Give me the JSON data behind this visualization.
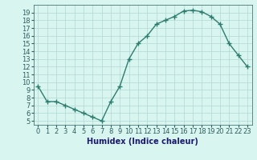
{
  "x": [
    0,
    1,
    2,
    3,
    4,
    5,
    6,
    7,
    8,
    9,
    10,
    11,
    12,
    13,
    14,
    15,
    16,
    17,
    18,
    19,
    20,
    21,
    22,
    23
  ],
  "y": [
    9.5,
    7.5,
    7.5,
    7.0,
    6.5,
    6.0,
    5.5,
    5.0,
    7.5,
    9.5,
    13.0,
    15.0,
    16.0,
    17.5,
    18.0,
    18.5,
    19.2,
    19.3,
    19.1,
    18.5,
    17.5,
    15.0,
    13.5,
    12.0
  ],
  "xlabel": "Humidex (Indice chaleur)",
  "line_color": "#2e7d6e",
  "marker_color": "#2e7d6e",
  "bg_color": "#d8f5f0",
  "grid_color": "#b0d8d4",
  "ylim": [
    4.5,
    20.0
  ],
  "xlim": [
    -0.5,
    23.5
  ],
  "yticks": [
    5,
    6,
    7,
    8,
    9,
    10,
    11,
    12,
    13,
    14,
    15,
    16,
    17,
    18,
    19
  ],
  "xticks": [
    0,
    1,
    2,
    3,
    4,
    5,
    6,
    7,
    8,
    9,
    10,
    11,
    12,
    13,
    14,
    15,
    16,
    17,
    18,
    19,
    20,
    21,
    22,
    23
  ],
  "xlabel_fontsize": 7,
  "tick_fontsize": 6,
  "xlabel_color": "#1a1a6e",
  "tick_color": "#2e5e5e"
}
